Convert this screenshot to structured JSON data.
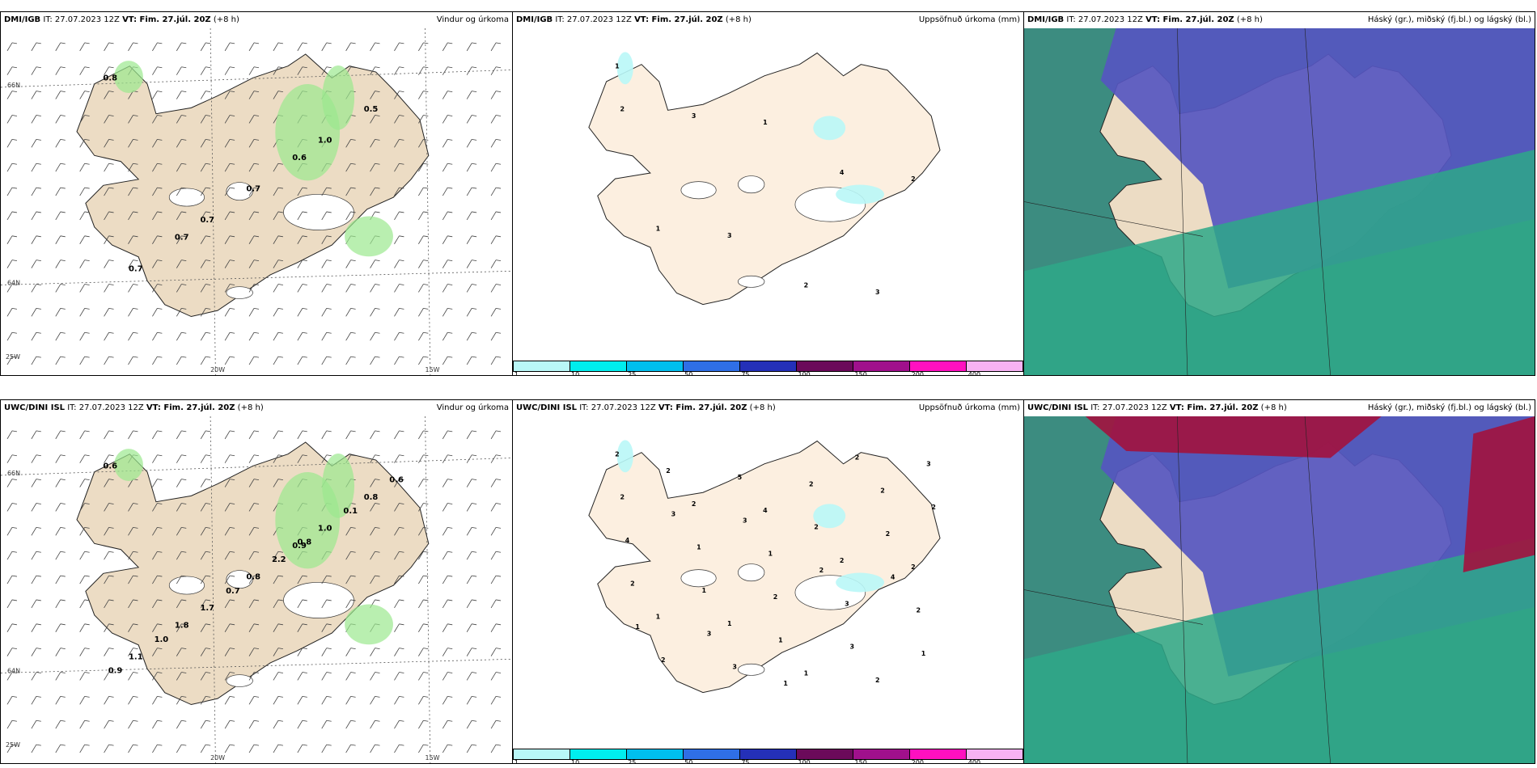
{
  "panels": [
    {
      "source": "DMI/IGB",
      "it": " IT: 27.07.2023 12Z ",
      "vt": "VT: Fim. 27.júl. 20Z",
      "lead": " (+8 h)",
      "title": "Vindur og úrkoma"
    },
    {
      "source": "DMI/IGB",
      "it": " IT: 27.07.2023 12Z ",
      "vt": "VT: Fim. 27.júl. 20Z",
      "lead": " (+8 h)",
      "title": "Uppsöfnuð úrkoma (mm)"
    },
    {
      "source": "DMI/IGB",
      "it": " IT: 27.07.2023 12Z ",
      "vt": "VT: Fim. 27.júl. 20Z",
      "lead": " (+8 h)",
      "title": "Háský (gr.), miðský (fj.bl.) og lágský (bl.)"
    },
    {
      "source": "UWC/DINI ISL",
      "it": " IT: 27.07.2023 12Z ",
      "vt": "VT: Fim. 27.júl. 20Z",
      "lead": " (+8 h)",
      "title": "Vindur og úrkoma"
    },
    {
      "source": "UWC/DINI ISL",
      "it": " IT: 27.07.2023 12Z ",
      "vt": "VT: Fim. 27.júl. 20Z",
      "lead": " (+8 h)",
      "title": "Uppsöfnuð úrkoma (mm)"
    },
    {
      "source": "UWC/DINI ISL",
      "it": " IT: 27.07.2023 12Z ",
      "vt": "VT: Fim. 27.júl. 20Z",
      "lead": " (+8 h)",
      "title": "Háský (gr.), miðský (fj.bl.) og lágský (bl.)"
    }
  ],
  "axes": {
    "lon20": "20W",
    "lon15": "15W",
    "lat66": "66N",
    "lat64": "64N",
    "lon25": "25W"
  },
  "precip_legend": {
    "ticks": [
      "1",
      "10",
      "25",
      "50",
      "75",
      "100",
      "150",
      "200",
      "400"
    ],
    "colors": [
      "#b9f7f7",
      "#00eeee",
      "#00bfee",
      "#2f6fe6",
      "#2430b8",
      "#6b0a5a",
      "#a0108c",
      "#ff10c0",
      "#f7b2f3"
    ]
  },
  "wind_labels_top": [
    "0.8",
    "0.6",
    "0.7",
    "0.5",
    "0.7",
    "0.7",
    "1.0",
    "0.7"
  ],
  "wind_labels_bottom": [
    "0.6",
    "0.9",
    "1.8",
    "0.8",
    "0.8",
    "1.1",
    "1.0",
    "1.7",
    "0.6",
    "2.2",
    "1.0",
    "0.1",
    "0.7",
    "0.9",
    "0.8"
  ],
  "precip_labels_top": [
    "1",
    "1",
    "2",
    "3",
    "3",
    "3",
    "4",
    "1",
    "2",
    "2"
  ],
  "precip_labels_bottom": [
    "2",
    "4",
    "2",
    "1",
    "2",
    "2",
    "2",
    "1",
    "1",
    "2",
    "1",
    "2",
    "3",
    "2",
    "1",
    "3",
    "2",
    "2",
    "4",
    "2",
    "1",
    "5",
    "2",
    "1",
    "3",
    "2",
    "2",
    "2",
    "1",
    "3",
    "3",
    "4",
    "3",
    "2",
    "3",
    "2",
    "1",
    "1",
    "2"
  ],
  "colors": {
    "land": "#ecdcc4",
    "land_pale": "#fcefe0",
    "glacier": "#ffffff",
    "precip_green": "#9be88f",
    "high_cloud": "#a2123e",
    "mid_cloud": "#5656c0",
    "low_cloud": "#2ea888",
    "cloud_sea": "#3c8c80"
  }
}
